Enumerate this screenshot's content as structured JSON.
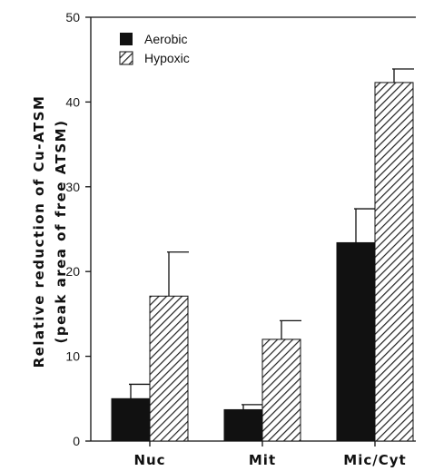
{
  "chart_data": {
    "type": "bar",
    "categories": [
      "Nuc",
      "Mit",
      "Mic/Cyt"
    ],
    "series": [
      {
        "name": "Aerobic",
        "values": [
          5.0,
          3.7,
          23.4
        ],
        "errors": [
          1.7,
          0.6,
          4.0
        ],
        "fill": "solid",
        "color": "#111111"
      },
      {
        "name": "Hypoxic",
        "values": [
          17.1,
          12.0,
          42.3
        ],
        "errors": [
          5.2,
          2.2,
          1.6
        ],
        "fill": "hatched",
        "color": "#111111"
      }
    ],
    "ylabel": [
      "Relative reduction of Cu-ATSM",
      "(peak area of free ATSM)"
    ],
    "xlabel": "",
    "ylim": [
      0,
      50
    ],
    "yticks": [
      0,
      10,
      20,
      30,
      40,
      50
    ],
    "grid": false,
    "legend": "top-left"
  }
}
